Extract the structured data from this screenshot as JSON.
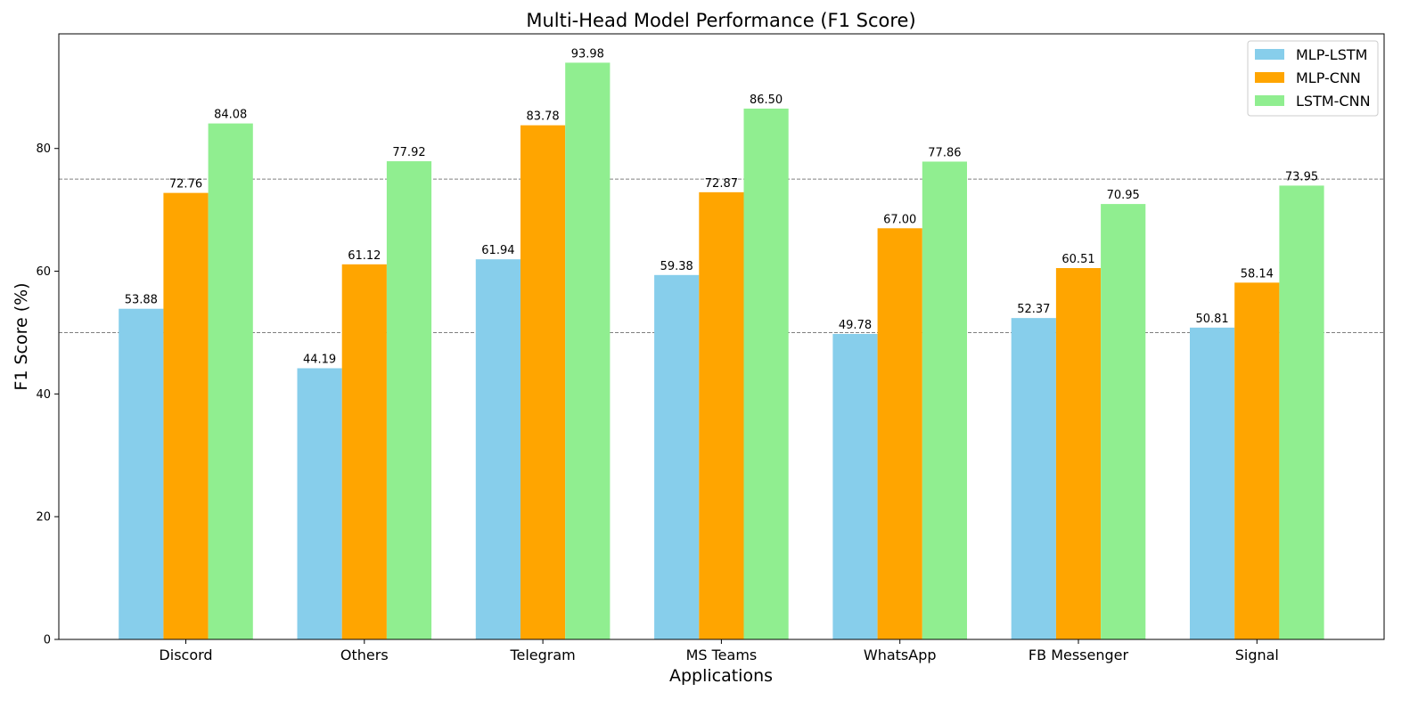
{
  "chart_data": {
    "type": "bar",
    "title": "Multi-Head Model Performance (F1 Score)",
    "xlabel": "Applications",
    "ylabel": "F1 Score (%)",
    "categories": [
      "Discord",
      "Others",
      "Telegram",
      "MS Teams",
      "WhatsApp",
      "FB Messenger",
      "Signal"
    ],
    "series": [
      {
        "name": "MLP-LSTM",
        "color": "#87ceeb",
        "values": [
          53.88,
          44.19,
          61.94,
          59.38,
          49.78,
          52.37,
          50.81
        ],
        "labels": [
          "53.88",
          "44.19",
          "61.94",
          "59.38",
          "49.78",
          "52.37",
          "50.81"
        ]
      },
      {
        "name": "MLP-CNN",
        "color": "#ffa500",
        "values": [
          72.76,
          61.12,
          83.78,
          72.87,
          67.0,
          60.51,
          58.14
        ],
        "labels": [
          "72.76",
          "61.12",
          "83.78",
          "72.87",
          "67.00",
          "60.51",
          "58.14"
        ]
      },
      {
        "name": "LSTM-CNN",
        "color": "#90ee90",
        "values": [
          84.08,
          77.92,
          93.98,
          86.5,
          77.86,
          70.95,
          73.95
        ],
        "labels": [
          "84.08",
          "77.92",
          "93.98",
          "86.50",
          "77.86",
          "70.95",
          "73.95"
        ]
      }
    ],
    "ylim": [
      0,
      98.68
    ],
    "yticks": [
      0,
      20,
      40,
      60,
      80
    ],
    "reference_lines": [
      50,
      75
    ],
    "legend_position": "top-right",
    "grid": false
  }
}
